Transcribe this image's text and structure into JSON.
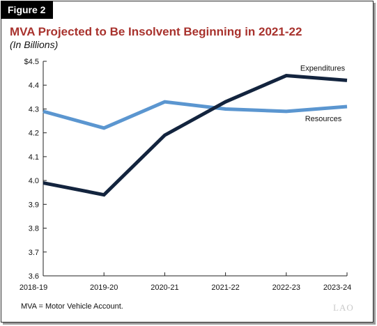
{
  "figure_label": "Figure 2",
  "footnote": "MVA = Motor Vehicle Account.",
  "logo_text": "LAO",
  "colors": {
    "title": "#a8322d",
    "expenditures": "#13243e",
    "resources": "#5b96d0",
    "axis": "#222222"
  },
  "chart_data": {
    "type": "line",
    "title": "MVA Projected to Be Insolvent Beginning in 2021-22",
    "subtitle": "(In Billions)",
    "xlabel": "",
    "ylabel": "",
    "categories": [
      "2018-19",
      "2019-20",
      "2020-21",
      "2021-22",
      "2022-23",
      "2023-24"
    ],
    "ylim": [
      3.6,
      4.5
    ],
    "yticks": [
      3.6,
      3.7,
      3.8,
      3.9,
      4.0,
      4.1,
      4.2,
      4.3,
      4.4,
      4.5
    ],
    "ytick_labels": [
      "3.6",
      "3.7",
      "3.8",
      "3.9",
      "4.0",
      "4.1",
      "4.2",
      "4.3",
      "4.4",
      "$4.5"
    ],
    "grid": false,
    "legend": "inline labels",
    "series": [
      {
        "name": "Expenditures",
        "values": [
          3.99,
          3.94,
          4.19,
          4.33,
          4.44,
          4.42
        ]
      },
      {
        "name": "Resources",
        "values": [
          4.29,
          4.22,
          4.33,
          4.3,
          4.29,
          4.31
        ]
      }
    ]
  }
}
